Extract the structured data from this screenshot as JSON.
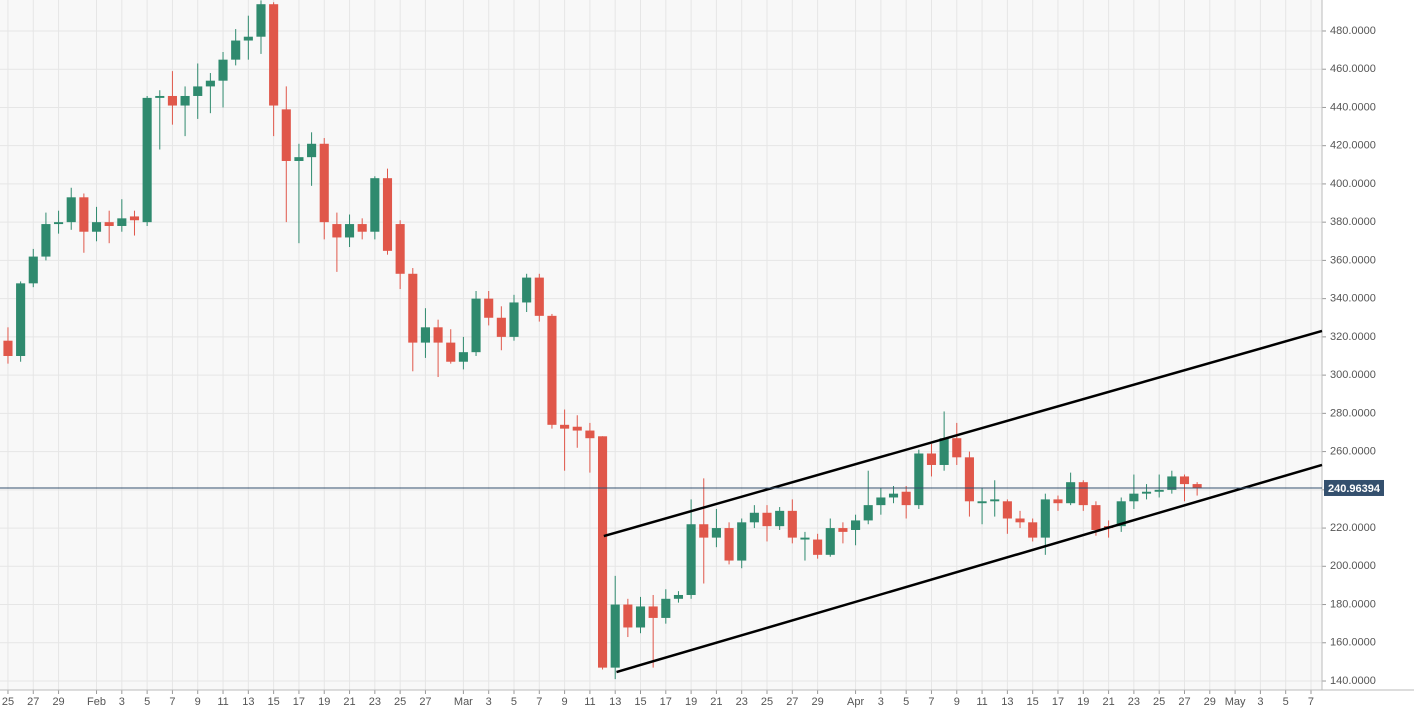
{
  "chart_data": {
    "type": "candlestick",
    "x": [
      0,
      1,
      2,
      3,
      4,
      5,
      6,
      7,
      8,
      9,
      10,
      11,
      12,
      13,
      14,
      15,
      16,
      17,
      18,
      19,
      20,
      21,
      22,
      23,
      24,
      25,
      26,
      27,
      28,
      29,
      30,
      31,
      32,
      33,
      34,
      35,
      36,
      37,
      38,
      39,
      40,
      41,
      42,
      43,
      44,
      45,
      46,
      47,
      48,
      49,
      50,
      51,
      52,
      53,
      54,
      55,
      56,
      57,
      58,
      59,
      60,
      61,
      62,
      63,
      64,
      65,
      66,
      67,
      68,
      69,
      70,
      71,
      72,
      73,
      74,
      75,
      76,
      77,
      78,
      79,
      80,
      81,
      82,
      83,
      84,
      85,
      86,
      87,
      88,
      89,
      90,
      91,
      92,
      93,
      94
    ],
    "open": [
      318,
      310,
      348,
      362,
      379,
      380,
      393,
      375,
      380,
      378,
      383,
      380,
      445,
      446,
      441,
      446,
      451,
      454,
      465,
      475,
      477,
      494,
      439,
      412,
      414,
      421,
      379,
      372,
      379,
      375,
      403,
      379,
      353,
      317,
      325,
      317,
      307,
      312,
      340,
      330,
      320,
      338,
      351,
      331,
      274,
      273,
      271,
      268,
      147,
      180,
      168,
      179,
      173,
      183,
      185,
      222,
      215,
      220,
      203,
      223,
      228,
      221,
      229,
      214,
      214,
      206,
      220,
      219,
      224,
      232,
      236,
      239,
      232,
      259,
      253,
      267,
      257,
      233,
      234,
      234,
      225,
      223,
      215,
      235,
      233,
      244,
      232,
      221,
      221,
      234,
      238,
      239,
      240,
      247,
      243
    ],
    "high": [
      325,
      349,
      366,
      385,
      386,
      398,
      395,
      388,
      386,
      392,
      386,
      446,
      449,
      459,
      451,
      463,
      458,
      469,
      481,
      488,
      496,
      495,
      451,
      421,
      427,
      424,
      385,
      384,
      382,
      404,
      408,
      381,
      356,
      335,
      329,
      324,
      320,
      344,
      344,
      336,
      342,
      353,
      353,
      332,
      282,
      279,
      275,
      268,
      195,
      183,
      184,
      185,
      188,
      187,
      235,
      246,
      230,
      223,
      225,
      232,
      232,
      231,
      235,
      218,
      217,
      225,
      223,
      227,
      250,
      241,
      242,
      242,
      261,
      264,
      281,
      275,
      260,
      241,
      245,
      235,
      229,
      225,
      238,
      237,
      249,
      245,
      234,
      224,
      236,
      248,
      243,
      248,
      250,
      248,
      244
    ],
    "low": [
      306,
      307,
      346,
      360,
      374,
      376,
      364,
      370,
      369,
      375,
      373,
      378,
      418,
      431,
      425,
      434,
      437,
      440,
      462,
      465,
      468,
      425,
      380,
      369,
      399,
      371,
      354,
      367,
      371,
      371,
      363,
      345,
      302,
      309,
      299,
      306,
      303,
      310,
      326,
      313,
      318,
      333,
      328,
      272,
      250,
      262,
      249,
      146,
      141,
      163,
      165,
      147,
      170,
      181,
      183,
      191,
      210,
      201,
      199,
      220,
      213,
      219,
      212,
      203,
      204,
      205,
      212,
      211,
      222,
      227,
      233,
      225,
      230,
      247,
      250,
      253,
      226,
      222,
      226,
      217,
      220,
      213,
      206,
      229,
      232,
      229,
      216,
      215,
      218,
      230,
      235,
      236,
      238,
      234,
      237
    ],
    "close": [
      310,
      348,
      362,
      379,
      380,
      393,
      375,
      380,
      378,
      382,
      381,
      445,
      446,
      441,
      446,
      451,
      454,
      465,
      475,
      477,
      494,
      441,
      412,
      414,
      421,
      380,
      372,
      379,
      375,
      403,
      365,
      353,
      317,
      325,
      317,
      307,
      312,
      340,
      330,
      320,
      338,
      351,
      331,
      274,
      272,
      271,
      267,
      147,
      180,
      168,
      179,
      173,
      183,
      185,
      222,
      215,
      220,
      203,
      223,
      228,
      221,
      229,
      215,
      215,
      206,
      220,
      218,
      224,
      232,
      236,
      238,
      232,
      259,
      253,
      267,
      257,
      234,
      234,
      235,
      225,
      223,
      215,
      235,
      233,
      244,
      232,
      219,
      220,
      234,
      238,
      239,
      240,
      247,
      243,
      241
    ],
    "up_color": "#2f8a6e",
    "down_color": "#e0574a",
    "xlim": [
      -0.63,
      103.87
    ],
    "ylim": [
      135.3,
      496.2
    ],
    "xticks": [
      {
        "value": 0,
        "label": "25"
      },
      {
        "value": 2,
        "label": "27"
      },
      {
        "value": 4,
        "label": "29"
      },
      {
        "value": 7,
        "label": "Feb"
      },
      {
        "value": 9,
        "label": "3"
      },
      {
        "value": 11,
        "label": "5"
      },
      {
        "value": 13,
        "label": "7"
      },
      {
        "value": 15,
        "label": "9"
      },
      {
        "value": 17,
        "label": "11"
      },
      {
        "value": 19,
        "label": "13"
      },
      {
        "value": 21,
        "label": "15"
      },
      {
        "value": 23,
        "label": "17"
      },
      {
        "value": 25,
        "label": "19"
      },
      {
        "value": 27,
        "label": "21"
      },
      {
        "value": 29,
        "label": "23"
      },
      {
        "value": 31,
        "label": "25"
      },
      {
        "value": 33,
        "label": "27"
      },
      {
        "value": 36,
        "label": "Mar"
      },
      {
        "value": 38,
        "label": "3"
      },
      {
        "value": 40,
        "label": "5"
      },
      {
        "value": 42,
        "label": "7"
      },
      {
        "value": 44,
        "label": "9"
      },
      {
        "value": 46,
        "label": "11"
      },
      {
        "value": 48,
        "label": "13"
      },
      {
        "value": 50,
        "label": "15"
      },
      {
        "value": 52,
        "label": "17"
      },
      {
        "value": 54,
        "label": "19"
      },
      {
        "value": 56,
        "label": "21"
      },
      {
        "value": 58,
        "label": "23"
      },
      {
        "value": 60,
        "label": "25"
      },
      {
        "value": 62,
        "label": "27"
      },
      {
        "value": 64,
        "label": "29"
      },
      {
        "value": 67,
        "label": "Apr"
      },
      {
        "value": 69,
        "label": "3"
      },
      {
        "value": 71,
        "label": "5"
      },
      {
        "value": 73,
        "label": "7"
      },
      {
        "value": 75,
        "label": "9"
      },
      {
        "value": 77,
        "label": "11"
      },
      {
        "value": 79,
        "label": "13"
      },
      {
        "value": 81,
        "label": "15"
      },
      {
        "value": 83,
        "label": "17"
      },
      {
        "value": 85,
        "label": "19"
      },
      {
        "value": 87,
        "label": "21"
      },
      {
        "value": 89,
        "label": "23"
      },
      {
        "value": 91,
        "label": "25"
      },
      {
        "value": 93,
        "label": "27"
      },
      {
        "value": 95,
        "label": "29"
      },
      {
        "value": 97,
        "label": "May"
      },
      {
        "value": 99,
        "label": "3"
      },
      {
        "value": 101,
        "label": "5"
      },
      {
        "value": 103,
        "label": "7"
      }
    ],
    "yticks": [
      {
        "value": 140,
        "label": "140.0000"
      },
      {
        "value": 160,
        "label": "160.0000"
      },
      {
        "value": 180,
        "label": "180.0000"
      },
      {
        "value": 200,
        "label": "200.0000"
      },
      {
        "value": 220,
        "label": "220.0000"
      },
      {
        "value": 240,
        "label": "240.0000"
      },
      {
        "value": 260,
        "label": "260.0000"
      },
      {
        "value": 280,
        "label": "280.0000"
      },
      {
        "value": 300,
        "label": "300.0000"
      },
      {
        "value": 320,
        "label": "320.0000"
      },
      {
        "value": 340,
        "label": "340.0000"
      },
      {
        "value": 360,
        "label": "360.0000"
      },
      {
        "value": 380,
        "label": "380.0000"
      },
      {
        "value": 400,
        "label": "400.0000"
      },
      {
        "value": 420,
        "label": "420.0000"
      },
      {
        "value": 440,
        "label": "440.0000"
      },
      {
        "value": 460,
        "label": "460.0000"
      },
      {
        "value": 480,
        "label": "480.0000"
      }
    ],
    "grid": true,
    "last_price": 240.96394,
    "last_price_color": "#34506e",
    "trendlines": [
      {
        "x": [
          47.1,
          103.87
        ],
        "y": [
          215.8,
          323.1
        ],
        "color": "#000000"
      },
      {
        "x": [
          48.1,
          103.87
        ],
        "y": [
          144.7,
          253.0
        ],
        "color": "#000000"
      }
    ]
  }
}
